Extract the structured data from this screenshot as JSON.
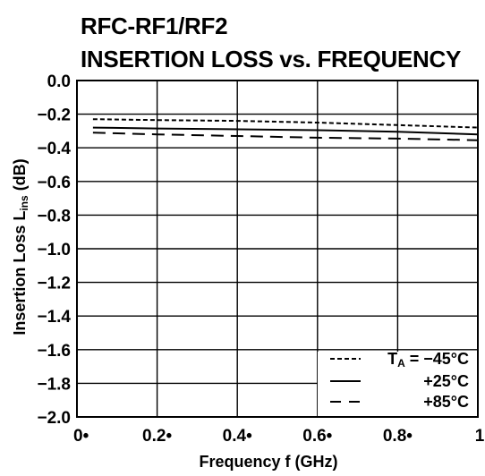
{
  "chart_data": {
    "type": "line",
    "title_line1": "RFC-RF1/RF2",
    "title_line2": "INSERTION LOSS vs. FREQUENCY",
    "xlabel": "Frequency  f (GHz)",
    "ylabel": "Insertion Loss  L",
    "ylabel_sub": "ins",
    "ylabel_unit": " (dB)",
    "xlim": [
      0,
      1
    ],
    "ylim": [
      -2.0,
      0.0
    ],
    "x_ticks": [
      0,
      0.2,
      0.4,
      0.6,
      0.8,
      1.0
    ],
    "x_tick_labels": [
      "0•",
      "0.2•",
      "0.4•",
      "0.6•",
      "0.8•",
      "1"
    ],
    "y_ticks": [
      0.0,
      -0.2,
      -0.4,
      -0.6,
      -0.8,
      -1.0,
      -1.2,
      -1.4,
      -1.6,
      -1.8,
      -2.0
    ],
    "y_tick_labels": [
      "0.0",
      "−0.2",
      "−0.4",
      "−0.6",
      "−0.8",
      "−1.0",
      "−1.2",
      "−1.4",
      "−1.6",
      "−1.8",
      "−2.0"
    ],
    "grid": true,
    "legend_position": "bottom-right",
    "legend_prefix": "T",
    "legend_prefix_sub": "A",
    "legend_prefix_eq": " = ",
    "series": [
      {
        "name": "−45°C",
        "style": "dotted",
        "x": [
          0.04,
          0.2,
          0.4,
          0.6,
          0.8,
          1.0
        ],
        "y": [
          -0.23,
          -0.235,
          -0.24,
          -0.25,
          -0.265,
          -0.28
        ]
      },
      {
        "name": "+25°C",
        "style": "solid",
        "x": [
          0.04,
          0.2,
          0.4,
          0.6,
          0.8,
          1.0
        ],
        "y": [
          -0.28,
          -0.285,
          -0.29,
          -0.295,
          -0.305,
          -0.32
        ]
      },
      {
        "name": "+85°C",
        "style": "dashed",
        "x": [
          0.04,
          0.2,
          0.4,
          0.6,
          0.8,
          1.0
        ],
        "y": [
          -0.31,
          -0.32,
          -0.33,
          -0.34,
          -0.345,
          -0.355
        ]
      }
    ]
  }
}
